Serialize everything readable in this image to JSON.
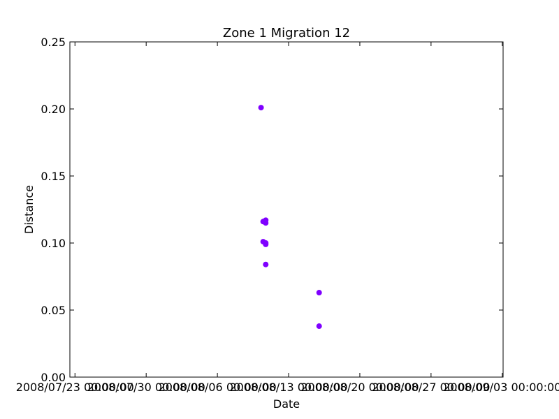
{
  "chart_data": {
    "type": "scatter",
    "title": "Zone 1 Migration 12",
    "xlabel": "Date",
    "ylabel": "Distance",
    "x_type": "datetime",
    "xlim": [
      "2008/07/22 12:00:00",
      "2008/09/03 02:00:00"
    ],
    "ylim": [
      0.0,
      0.25
    ],
    "xticks": [
      "2008/07/23 00:00:00",
      "2008/07/30 00:00:00",
      "2008/08/06 00:00:00",
      "2008/08/13 00:00:00",
      "2008/08/20 00:00:00",
      "2008/08/27 00:00:00",
      "2008/09/03 00:00:00"
    ],
    "yticks": [
      "0.00",
      "0.05",
      "0.10",
      "0.15",
      "0.20",
      "0.25"
    ],
    "grid": false,
    "marker_color": "#7f00ff",
    "points": [
      {
        "x": "2008/08/10 07:00:00",
        "y": 0.201
      },
      {
        "x": "2008/08/10 12:00:00",
        "y": 0.116
      },
      {
        "x": "2008/08/10 18:00:00",
        "y": 0.117
      },
      {
        "x": "2008/08/10 18:00:00",
        "y": 0.115
      },
      {
        "x": "2008/08/10 12:00:00",
        "y": 0.101
      },
      {
        "x": "2008/08/10 18:00:00",
        "y": 0.099
      },
      {
        "x": "2008/08/10 18:00:00",
        "y": 0.1
      },
      {
        "x": "2008/08/10 18:00:00",
        "y": 0.084
      },
      {
        "x": "2008/08/16 00:00:00",
        "y": 0.063
      },
      {
        "x": "2008/08/16 00:00:00",
        "y": 0.038
      }
    ]
  }
}
